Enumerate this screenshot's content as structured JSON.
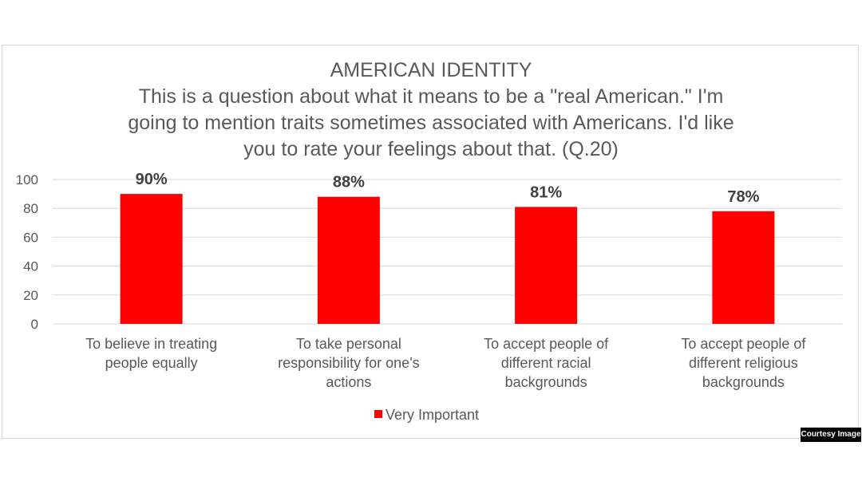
{
  "chart_data": {
    "type": "bar",
    "title": "AMERICAN IDENTITY",
    "subtitle_lines": [
      "This is a question about what it means to be a \"real American.\" I'm",
      "going to mention traits sometimes associated with Americans. I'd like",
      "you to rate your feelings about that. (Q.20)"
    ],
    "categories": [
      [
        "To believe in treating",
        "people equally"
      ],
      [
        "To take personal",
        "responsibility for one's",
        "actions"
      ],
      [
        "To accept people of",
        "different racial",
        "backgrounds"
      ],
      [
        "To accept people of",
        "different religious",
        "backgrounds"
      ]
    ],
    "series": [
      {
        "name": "Very Important",
        "values": [
          90,
          88,
          81,
          78
        ],
        "data_labels": [
          "90%",
          "88%",
          "81%",
          "78%"
        ],
        "color": "#ff0000"
      }
    ],
    "ylim": [
      0,
      100
    ],
    "yticks": [
      0,
      20,
      40,
      60,
      80,
      100
    ],
    "grid": true,
    "legend_position": "bottom"
  },
  "colors": {
    "bar": "#ff0000",
    "text": "#595959",
    "data_label": "#404040",
    "grid": "#d9d9d9"
  },
  "badge": {
    "text": "Courtesy Image"
  }
}
